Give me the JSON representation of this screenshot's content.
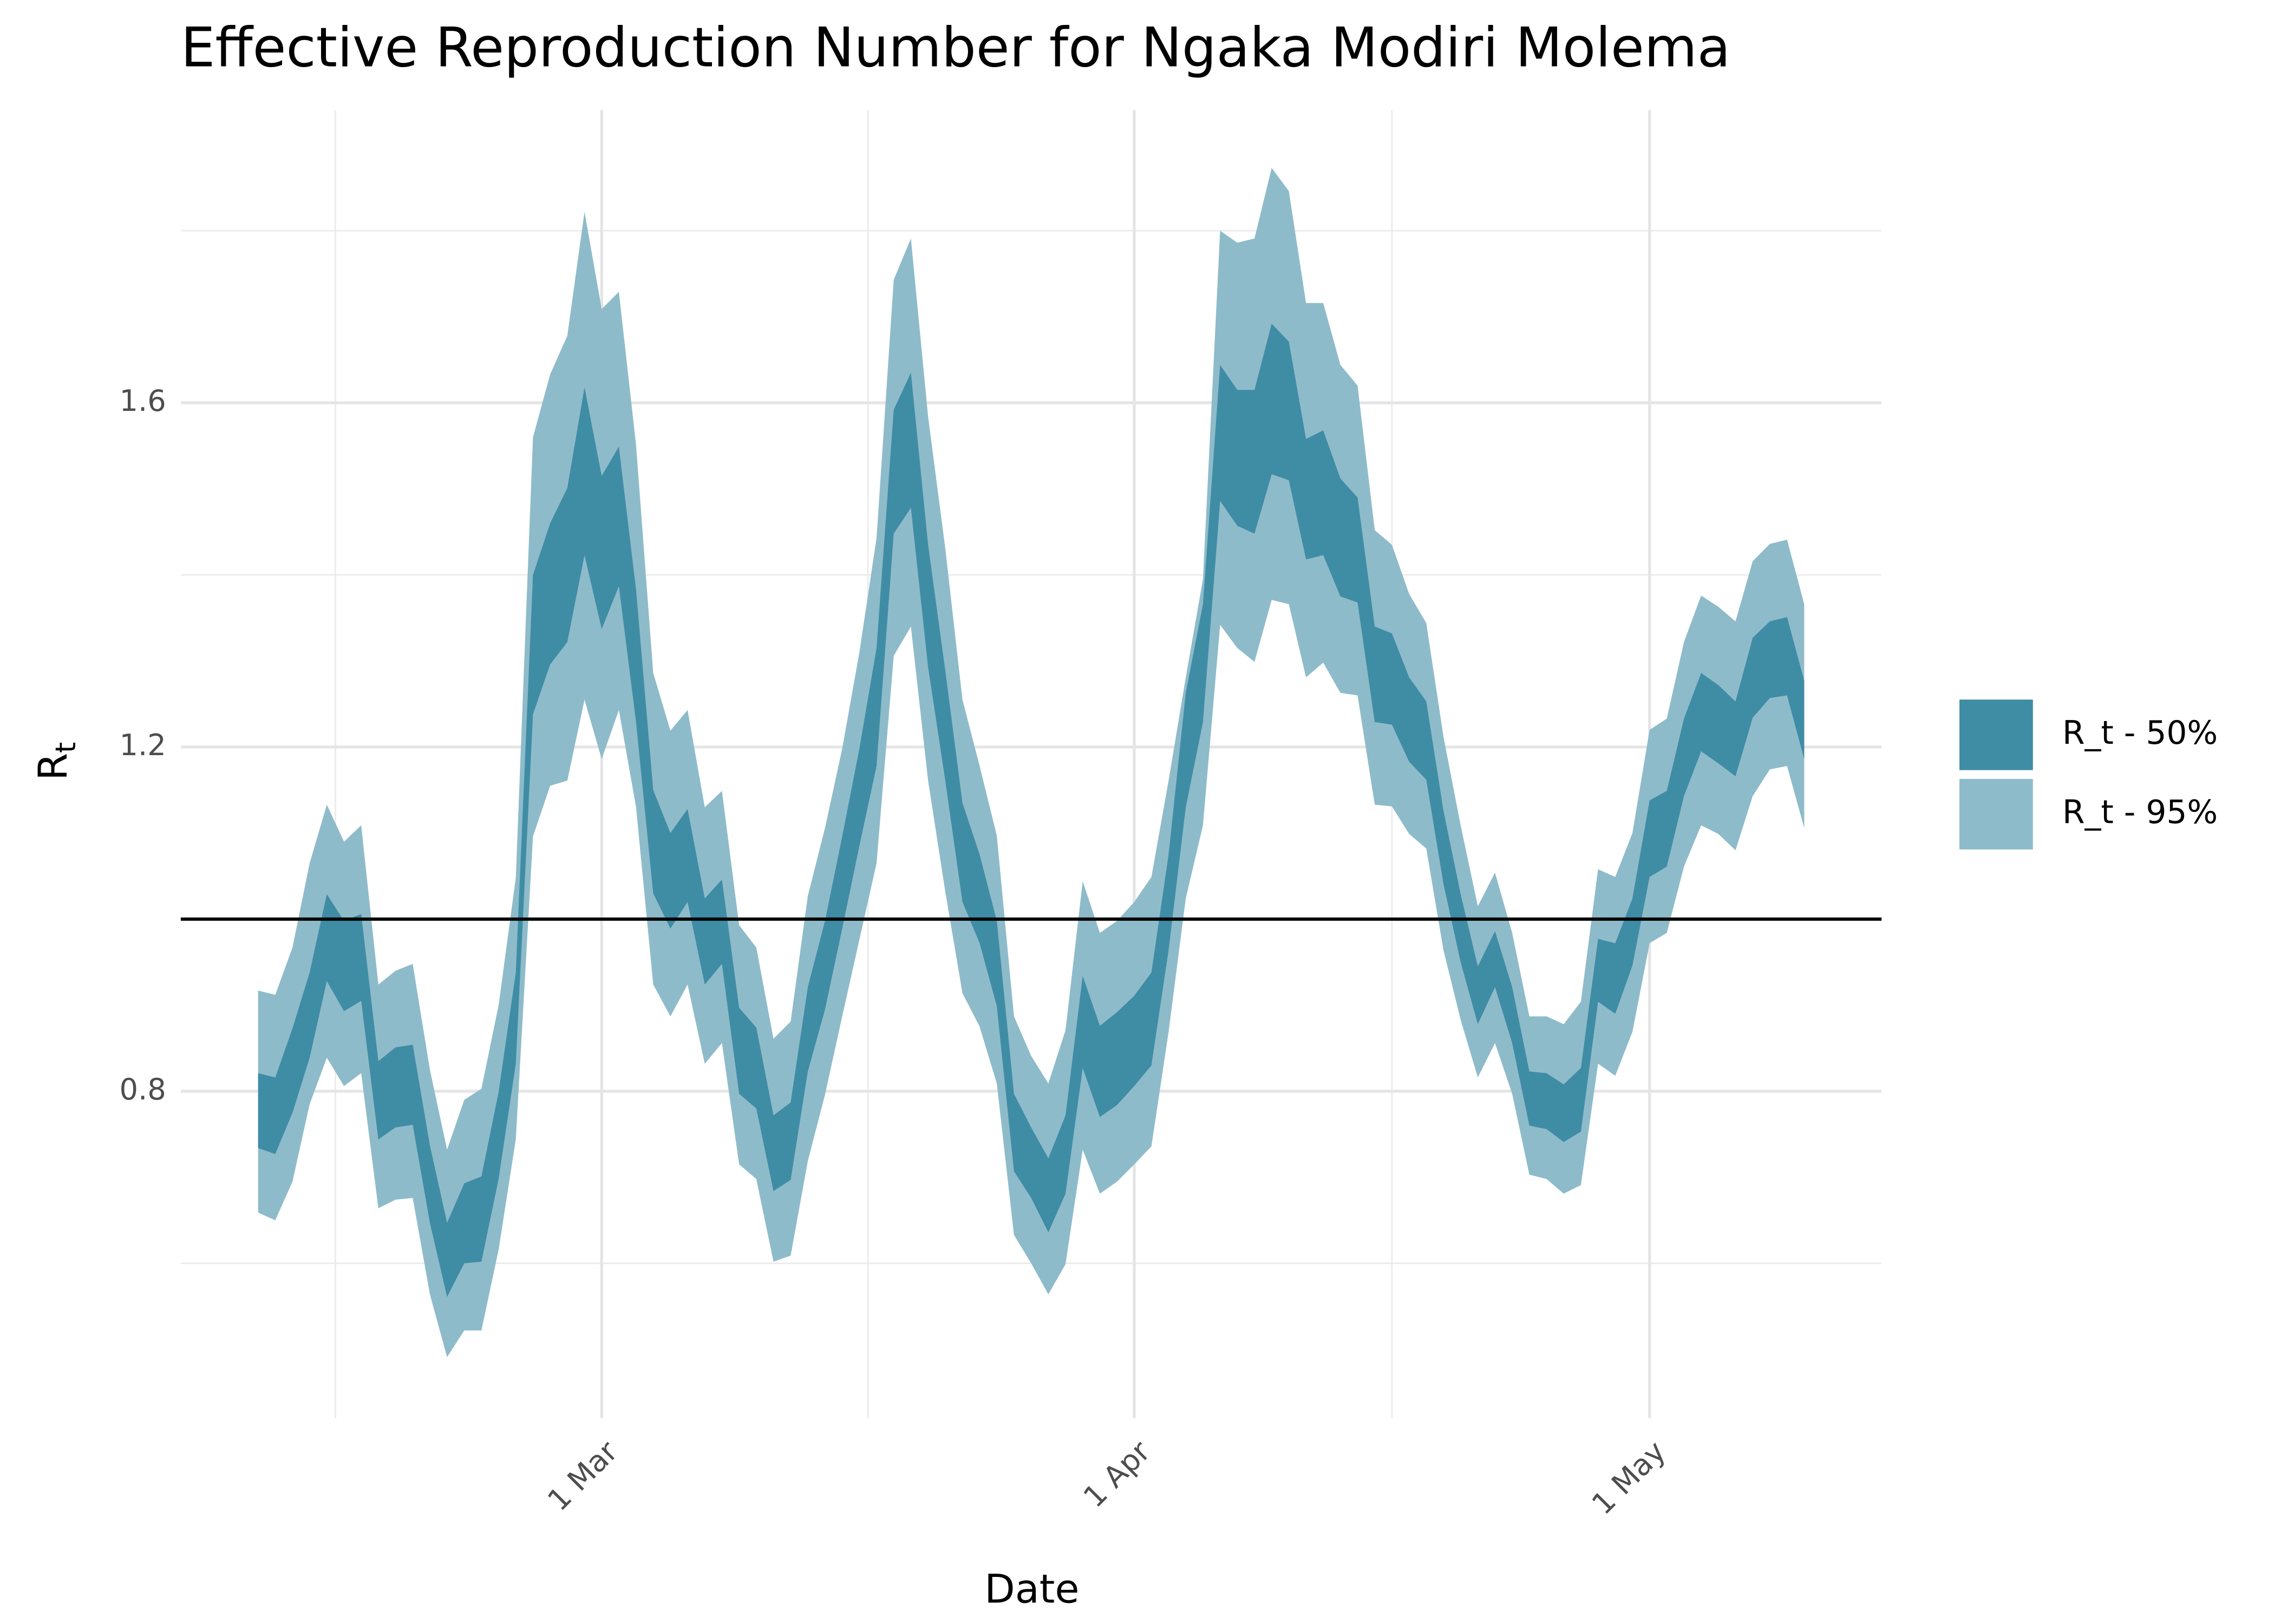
{
  "chart_data": {
    "type": "ribbon",
    "title": "Effective Reproduction Number for Ngaka Modiri Molema",
    "x_label": "Date",
    "y_label": "R",
    "y_label_subscript": "t",
    "x": [
      "10 Feb",
      "11 Feb",
      "12 Feb",
      "13 Feb",
      "14 Feb",
      "15 Feb",
      "16 Feb",
      "17 Feb",
      "18 Feb",
      "19 Feb",
      "20 Feb",
      "21 Feb",
      "22 Feb",
      "23 Feb",
      "24 Feb",
      "25 Feb",
      "26 Feb",
      "27 Feb",
      "28 Feb",
      "29 Feb",
      "1 Mar",
      "2 Mar",
      "3 Mar",
      "4 Mar",
      "5 Mar",
      "6 Mar",
      "7 Mar",
      "8 Mar",
      "9 Mar",
      "10 Mar",
      "11 Mar",
      "12 Mar",
      "13 Mar",
      "14 Mar",
      "15 Mar",
      "16 Mar",
      "17 Mar",
      "18 Mar",
      "19 Mar",
      "20 Mar",
      "21 Mar",
      "22 Mar",
      "23 Mar",
      "24 Mar",
      "25 Mar",
      "26 Mar",
      "27 Mar",
      "28 Mar",
      "29 Mar",
      "30 Mar",
      "31 Mar",
      "1 Apr",
      "2 Apr",
      "3 Apr",
      "4 Apr",
      "5 Apr",
      "6 Apr",
      "7 Apr",
      "8 Apr",
      "9 Apr",
      "10 Apr",
      "11 Apr",
      "12 Apr",
      "13 Apr",
      "14 Apr",
      "15 Apr",
      "16 Apr",
      "17 Apr",
      "18 Apr",
      "19 Apr",
      "20 Apr",
      "21 Apr",
      "22 Apr",
      "23 Apr",
      "24 Apr",
      "25 Apr",
      "26 Apr",
      "27 Apr",
      "28 Apr",
      "29 Apr",
      "30 Apr",
      "1 May",
      "2 May",
      "3 May",
      "4 May",
      "5 May",
      "6 May",
      "7 May",
      "8 May",
      "9 May",
      "10 May"
    ],
    "series": [
      {
        "name": "R_t - 50%",
        "color": "#3f8ca5",
        "upper": [
          0.821,
          0.816,
          0.873,
          0.938,
          1.029,
          0.998,
          1.006,
          0.835,
          0.851,
          0.854,
          0.737,
          0.647,
          0.693,
          0.701,
          0.799,
          0.938,
          1.4,
          1.46,
          1.501,
          1.618,
          1.515,
          1.549,
          1.383,
          1.15,
          1.1,
          1.128,
          1.024,
          1.046,
          0.897,
          0.874,
          0.772,
          0.787,
          0.921,
          0.998,
          1.096,
          1.198,
          1.315,
          1.592,
          1.635,
          1.435,
          1.289,
          1.135,
          1.075,
          0.998,
          0.797,
          0.758,
          0.722,
          0.772,
          0.934,
          0.876,
          0.892,
          0.911,
          0.938,
          1.075,
          1.263,
          1.366,
          1.644,
          1.615,
          1.615,
          1.692,
          1.671,
          1.558,
          1.568,
          1.512,
          1.49,
          1.34,
          1.332,
          1.281,
          1.253,
          1.126,
          1.029,
          0.945,
          0.986,
          0.921,
          0.823,
          0.821,
          0.808,
          0.827,
          0.977,
          0.972,
          1.024,
          1.138,
          1.149,
          1.233,
          1.286,
          1.272,
          1.253,
          1.327,
          1.346,
          1.351,
          1.277
        ],
        "lower": [
          0.734,
          0.727,
          0.775,
          0.839,
          0.928,
          0.893,
          0.905,
          0.744,
          0.758,
          0.761,
          0.647,
          0.561,
          0.6,
          0.602,
          0.698,
          0.832,
          1.238,
          1.296,
          1.322,
          1.423,
          1.337,
          1.387,
          1.229,
          1.03,
          0.989,
          1.02,
          0.924,
          0.948,
          0.797,
          0.78,
          0.684,
          0.697,
          0.823,
          0.895,
          0.989,
          1.085,
          1.178,
          1.448,
          1.478,
          1.293,
          1.161,
          1.02,
          0.972,
          0.899,
          0.707,
          0.676,
          0.636,
          0.681,
          0.827,
          0.77,
          0.784,
          0.806,
          0.83,
          0.964,
          1.13,
          1.229,
          1.486,
          1.457,
          1.448,
          1.517,
          1.51,
          1.418,
          1.423,
          1.375,
          1.368,
          1.229,
          1.226,
          1.183,
          1.162,
          1.041,
          0.95,
          0.878,
          0.921,
          0.856,
          0.76,
          0.756,
          0.741,
          0.753,
          0.904,
          0.89,
          0.946,
          1.049,
          1.061,
          1.143,
          1.195,
          1.181,
          1.166,
          1.234,
          1.257,
          1.26,
          1.186
        ]
      },
      {
        "name": "R_t - 95%",
        "color": "#8ebbca",
        "upper": [
          0.917,
          0.912,
          0.967,
          1.065,
          1.133,
          1.09,
          1.109,
          0.924,
          0.94,
          0.948,
          0.825,
          0.732,
          0.79,
          0.803,
          0.9,
          1.048,
          1.56,
          1.633,
          1.678,
          1.822,
          1.709,
          1.729,
          1.551,
          1.286,
          1.219,
          1.243,
          1.13,
          1.149,
          0.993,
          0.967,
          0.861,
          0.881,
          1.027,
          1.106,
          1.198,
          1.31,
          1.443,
          1.743,
          1.791,
          1.584,
          1.431,
          1.255,
          1.178,
          1.097,
          0.887,
          0.841,
          0.809,
          0.871,
          1.044,
          0.984,
          0.998,
          1.02,
          1.049,
          1.161,
          1.281,
          1.395,
          1.8,
          1.786,
          1.791,
          1.873,
          1.846,
          1.716,
          1.716,
          1.644,
          1.62,
          1.452,
          1.435,
          1.378,
          1.344,
          1.212,
          1.109,
          1.015,
          1.054,
          0.984,
          0.887,
          0.887,
          0.878,
          0.904,
          1.058,
          1.049,
          1.1,
          1.22,
          1.233,
          1.322,
          1.376,
          1.363,
          1.346,
          1.416,
          1.436,
          1.441,
          1.366
        ],
        "lower": [
          0.659,
          0.65,
          0.695,
          0.785,
          0.839,
          0.806,
          0.821,
          0.664,
          0.674,
          0.676,
          0.564,
          0.491,
          0.522,
          0.522,
          0.616,
          0.744,
          1.096,
          1.155,
          1.161,
          1.255,
          1.186,
          1.243,
          1.13,
          0.924,
          0.887,
          0.924,
          0.832,
          0.856,
          0.715,
          0.698,
          0.602,
          0.609,
          0.719,
          0.796,
          0.887,
          0.976,
          1.065,
          1.306,
          1.34,
          1.161,
          1.032,
          0.914,
          0.875,
          0.809,
          0.633,
          0.6,
          0.564,
          0.599,
          0.732,
          0.681,
          0.695,
          0.715,
          0.736,
          0.869,
          1.024,
          1.109,
          1.342,
          1.315,
          1.299,
          1.371,
          1.366,
          1.281,
          1.298,
          1.263,
          1.26,
          1.133,
          1.131,
          1.099,
          1.082,
          0.964,
          0.883,
          0.816,
          0.856,
          0.797,
          0.703,
          0.698,
          0.681,
          0.691,
          0.832,
          0.818,
          0.869,
          0.972,
          0.984,
          1.061,
          1.109,
          1.099,
          1.08,
          1.143,
          1.174,
          1.178,
          1.106
        ]
      }
    ],
    "hline": 1,
    "xticks": [
      "1 Mar",
      "1 Apr",
      "1 May"
    ],
    "ylim": [
      0.42,
      1.94
    ],
    "yticks": [
      0.8,
      1.2,
      1.6
    ],
    "grid": true,
    "legend": "right"
  }
}
